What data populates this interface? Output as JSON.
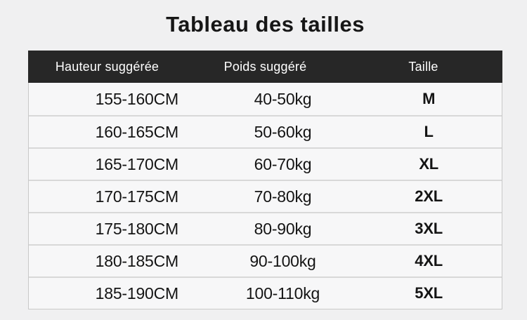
{
  "chart_data": {
    "type": "table",
    "title": "Tableau des tailles",
    "columns": [
      "Hauteur suggérée",
      "Poids suggéré",
      "Taille"
    ],
    "rows": [
      [
        "155-160CM",
        "40-50kg",
        "M"
      ],
      [
        "160-165CM",
        "50-60kg",
        "L"
      ],
      [
        "165-170CM",
        "60-70kg",
        "XL"
      ],
      [
        "170-175CM",
        "70-80kg",
        "2XL"
      ],
      [
        "175-180CM",
        "80-90kg",
        "3XL"
      ],
      [
        "180-185CM",
        "90-100kg",
        "4XL"
      ],
      [
        "185-190CM",
        "100-110kg",
        "5XL"
      ]
    ]
  },
  "colors": {
    "page_background": "#f0f0f1",
    "header_background": "#272727",
    "header_text": "#ffffff",
    "row_background": "#f7f7f8",
    "row_separator": "#d8d8d8",
    "body_text": "#141414",
    "title_text": "#161616"
  }
}
